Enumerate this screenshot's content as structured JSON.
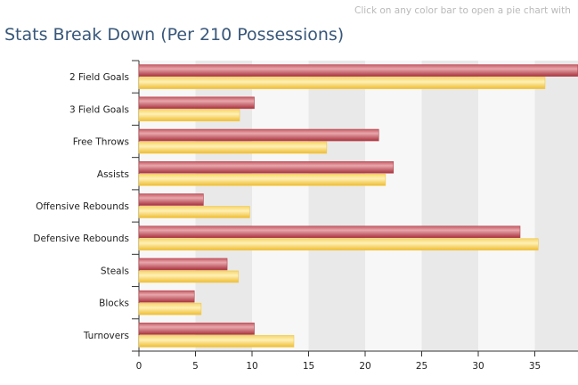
{
  "header": {
    "hint": "Click on any color bar to open a pie chart with",
    "title": "Stats Break Down (Per 210 Possessions)"
  },
  "colors": {
    "series_red": "#b8454f",
    "series_red_light": "#e39aa0",
    "series_yellow": "#f2c94a",
    "series_yellow_light": "#fde9a3",
    "band": "#e9e9e9",
    "plot_bg": "#f7f7f7"
  },
  "chart_data": {
    "type": "bar",
    "orientation": "horizontal",
    "title": "Stats Break Down (Per 210 Possessions)",
    "categories": [
      "2 Field Goals",
      "3 Field Goals",
      "Free Throws",
      "Assists",
      "Offensive Rebounds",
      "Defensive Rebounds",
      "Steals",
      "Blocks",
      "Turnovers"
    ],
    "series": [
      {
        "values": [
          38.8,
          10.2,
          21.2,
          22.5,
          5.7,
          33.7,
          7.8,
          4.9,
          10.2
        ]
      },
      {
        "values": [
          35.9,
          8.9,
          16.6,
          21.8,
          9.8,
          35.3,
          8.8,
          5.5,
          13.7
        ]
      }
    ],
    "xticks": [
      "0",
      "5",
      "10",
      "15",
      "20",
      "25",
      "30",
      "35"
    ],
    "xlim": [
      0,
      38.8
    ],
    "grid": "alternating vertical bands",
    "legend": "none"
  }
}
